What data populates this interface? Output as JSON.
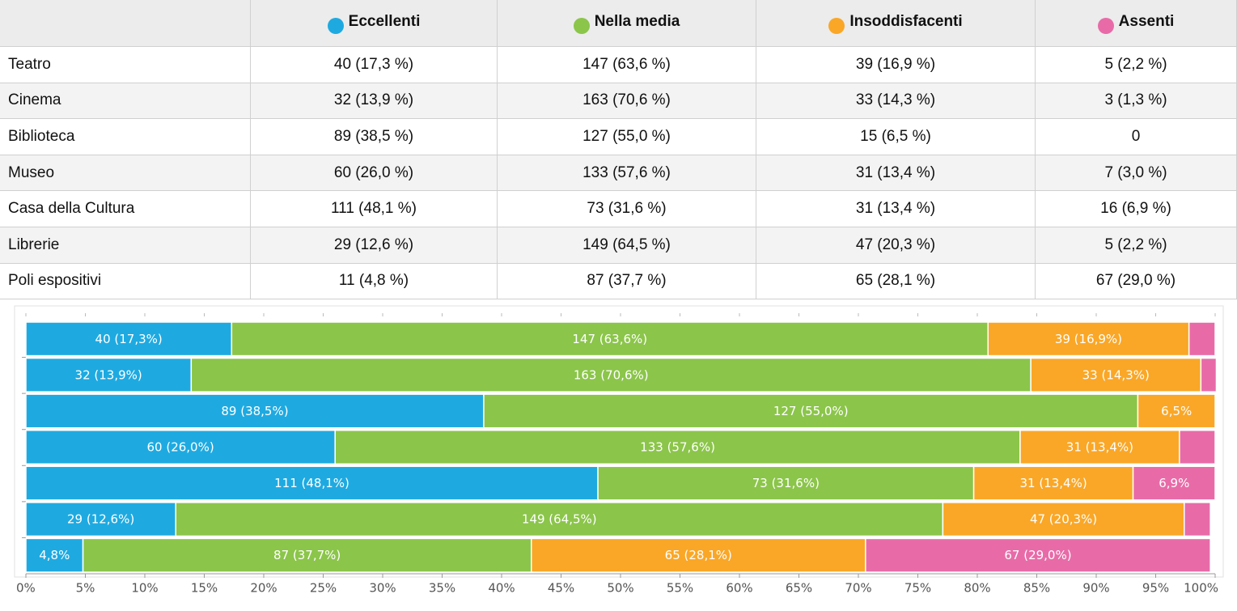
{
  "table": {
    "columns": [
      "Eccellenti",
      "Nella media",
      "Insoddisfacenti",
      "Assenti"
    ],
    "rows": [
      [
        "Teatro",
        "40 (17,3 %)",
        "147 (63,6 %)",
        "39 (16,9 %)",
        "5 (2,2 %)"
      ],
      [
        "Cinema",
        "32 (13,9 %)",
        "163 (70,6 %)",
        "33 (14,3 %)",
        "3 (1,3 %)"
      ],
      [
        "Biblioteca",
        "89 (38,5 %)",
        "127 (55,0 %)",
        "15 (6,5 %)",
        "0"
      ],
      [
        "Museo",
        "60 (26,0 %)",
        "133 (57,6 %)",
        "31 (13,4 %)",
        "7 (3,0 %)"
      ],
      [
        "Casa della Cultura",
        "111 (48,1 %)",
        "73 (31,6 %)",
        "31 (13,4 %)",
        "16 (6,9 %)"
      ],
      [
        "Librerie",
        "29 (12,6 %)",
        "149 (64,5 %)",
        "47 (20,3 %)",
        "5 (2,2 %)"
      ],
      [
        "Poli espositivi",
        "11 (4,8 %)",
        "87 (37,7 %)",
        "65 (28,1 %)",
        "67 (29,0 %)"
      ]
    ]
  },
  "chart_data": {
    "type": "stacked-bar-horizontal",
    "series": [
      {
        "color": "#1eaae1",
        "values": [
          17.3,
          13.9,
          38.5,
          26.0,
          48.1,
          12.6,
          4.8
        ],
        "value_labels": [
          "40 (17,3%)",
          "32 (13,9%)",
          "89 (38,5%)",
          "60 (26,0%)",
          "111 (48,1%)",
          "29 (12,6%)",
          "4,8%"
        ]
      },
      {
        "color": "#8bc54a",
        "values": [
          63.6,
          70.6,
          55.0,
          57.6,
          31.6,
          64.5,
          37.7
        ],
        "value_labels": [
          "147 (63,6%)",
          "163 (70,6%)",
          "127 (55,0%)",
          "133 (57,6%)",
          "73 (31,6%)",
          "149 (64,5%)",
          "87 (37,7%)"
        ]
      },
      {
        "color": "#faa727",
        "values": [
          16.9,
          14.3,
          6.5,
          13.4,
          13.4,
          20.3,
          28.1
        ],
        "value_labels": [
          "39 (16,9%)",
          "33 (14,3%)",
          "6,5%",
          "31 (13,4%)",
          "31 (13,4%)",
          "47 (20,3%)",
          "65 (28,1%)"
        ]
      },
      {
        "color": "#e86ba8",
        "values": [
          2.2,
          1.3,
          0,
          3.0,
          6.9,
          2.2,
          29.0
        ],
        "value_labels": [
          null,
          null,
          null,
          null,
          "6,9%",
          null,
          "67 (29,0%)"
        ]
      }
    ],
    "xlim": [
      0,
      100
    ],
    "xticks": [
      {
        "value": 0,
        "label": "0%"
      },
      {
        "value": 5,
        "label": "5%"
      },
      {
        "value": 10,
        "label": "10%"
      },
      {
        "value": 15,
        "label": "15%"
      },
      {
        "value": 20,
        "label": "20%"
      },
      {
        "value": 25,
        "label": "25%"
      },
      {
        "value": 30,
        "label": "30%"
      },
      {
        "value": 35,
        "label": "35%"
      },
      {
        "value": 40,
        "label": "40%"
      },
      {
        "value": 45,
        "label": "45%"
      },
      {
        "value": 50,
        "label": "50%"
      },
      {
        "value": 55,
        "label": "55%"
      },
      {
        "value": 60,
        "label": "60%"
      },
      {
        "value": 65,
        "label": "65%"
      },
      {
        "value": 70,
        "label": "70%"
      },
      {
        "value": 75,
        "label": "75%"
      },
      {
        "value": 80,
        "label": "80%"
      },
      {
        "value": 85,
        "label": "85%"
      },
      {
        "value": 90,
        "label": "90%"
      },
      {
        "value": 95,
        "label": "95%"
      },
      {
        "value": 100,
        "label": "100%"
      }
    ],
    "grid": false
  }
}
